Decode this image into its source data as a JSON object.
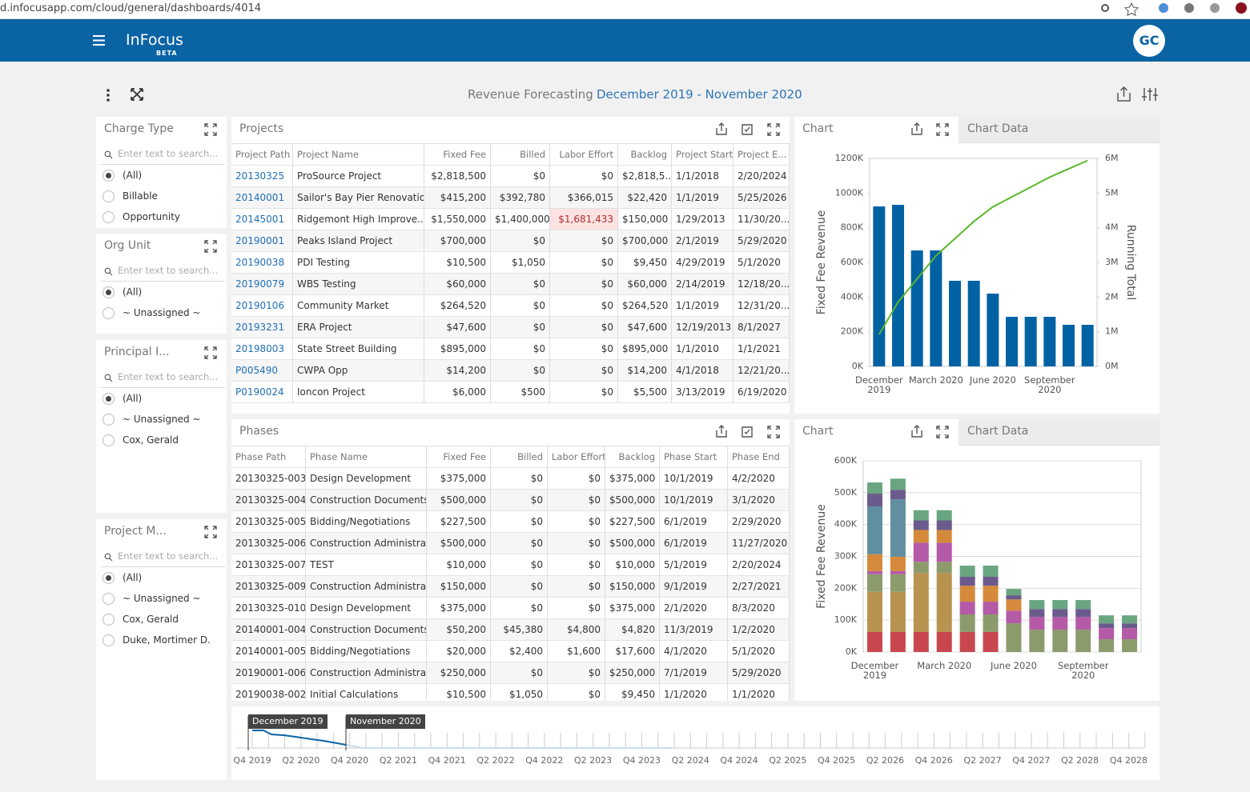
{
  "browser": {
    "url": "d.infocusapp.com/cloud/general/dashboards/4014"
  },
  "header": {
    "app_name": "InFocus",
    "badge": "BETA",
    "avatar": "GC"
  },
  "dashboard": {
    "title": "Revenue Forecasting",
    "date_range": "December 2019 - November 2020"
  },
  "filters": [
    {
      "title": "Charge Type",
      "search_placeholder": "Enter text to search...",
      "options": [
        "(All)",
        "Billable",
        "Opportunity"
      ]
    },
    {
      "title": "Org Unit",
      "search_placeholder": "Enter text to search...",
      "options": [
        "(All)",
        "~ Unassigned ~"
      ]
    },
    {
      "title": "Principal I...",
      "search_placeholder": "Enter text to search...",
      "options": [
        "(All)",
        "~ Unassigned ~",
        "Cox, Gerald"
      ]
    },
    {
      "title": "Project M...",
      "search_placeholder": "Enter text to search...",
      "options": [
        "(All)",
        "~ Unassigned ~",
        "Cox, Gerald",
        "Duke, Mortimer D."
      ]
    }
  ],
  "projects": {
    "title": "Projects",
    "columns": [
      "Project Path",
      "Project Name",
      "Fixed Fee",
      "Billed",
      "Labor Effort",
      "Backlog",
      "Project Start",
      "Project E..."
    ],
    "rows": [
      [
        "20130325",
        "ProSource Project",
        "$2,818,500",
        "$0",
        "$0",
        "$2,818,5...",
        "1/1/2018",
        "2/20/2024"
      ],
      [
        "20140001",
        "Sailor's Bay Pier Renovation",
        "$415,200",
        "$392,780",
        "$366,015",
        "$22,420",
        "1/1/2019",
        "5/25/2026"
      ],
      [
        "20145001",
        "Ridgemont High Improve...",
        "$1,550,000",
        "$1,400,000",
        "$1,681,433",
        "$150,000",
        "1/29/2013",
        "11/30/20..."
      ],
      [
        "20190001",
        "Peaks Island Project",
        "$700,000",
        "$0",
        "$0",
        "$700,000",
        "2/1/2019",
        "5/29/2020"
      ],
      [
        "20190038",
        "PDI Testing",
        "$10,500",
        "$1,050",
        "$0",
        "$9,450",
        "4/29/2019",
        "5/1/2020"
      ],
      [
        "20190079",
        "WBS Testing",
        "$60,000",
        "$0",
        "$0",
        "$60,000",
        "2/14/2019",
        "12/18/20..."
      ],
      [
        "20190106",
        "Community Market",
        "$264,520",
        "$0",
        "$0",
        "$264,520",
        "1/1/2019",
        "12/31/20..."
      ],
      [
        "20193231",
        "ERA Project",
        "$47,600",
        "$0",
        "$0",
        "$47,600",
        "12/19/2013",
        "8/1/2027"
      ],
      [
        "20198003",
        "State Street Building",
        "$895,000",
        "$0",
        "$0",
        "$895,000",
        "1/1/2010",
        "1/1/2021"
      ],
      [
        "P005490",
        "CWPA Opp",
        "$14,200",
        "$0",
        "$0",
        "$14,200",
        "4/1/2018",
        "12/21/20..."
      ],
      [
        "P0190024",
        "Ioncon Project",
        "$6,000",
        "$500",
        "$0",
        "$5,500",
        "3/13/2019",
        "6/19/2020"
      ]
    ]
  },
  "phases": {
    "title": "Phases",
    "columns": [
      "Phase Path",
      "Phase Name",
      "Fixed Fee",
      "Billed",
      "Labor Effort",
      "Backlog",
      "Phase Start",
      "Phase End"
    ],
    "rows": [
      [
        "20130325-003",
        "Design Development",
        "$375,000",
        "$0",
        "$0",
        "$375,000",
        "10/1/2019",
        "4/2/2020"
      ],
      [
        "20130325-004",
        "Construction Documents",
        "$500,000",
        "$0",
        "$0",
        "$500,000",
        "10/1/2019",
        "3/1/2020"
      ],
      [
        "20130325-005",
        "Bidding/Negotiations",
        "$227,500",
        "$0",
        "$0",
        "$227,500",
        "6/1/2019",
        "2/29/2020"
      ],
      [
        "20130325-006",
        "Construction Administra...",
        "$500,000",
        "$0",
        "$0",
        "$500,000",
        "6/1/2019",
        "11/27/2020"
      ],
      [
        "20130325-007",
        "TEST",
        "$10,000",
        "$0",
        "$0",
        "$10,000",
        "5/1/2019",
        "2/20/2024"
      ],
      [
        "20130325-009",
        "Construction Administra...",
        "$150,000",
        "$0",
        "$0",
        "$150,000",
        "9/1/2019",
        "2/27/2021"
      ],
      [
        "20130325-010",
        "Design Development",
        "$375,000",
        "$0",
        "$0",
        "$375,000",
        "2/1/2020",
        "8/3/2020"
      ],
      [
        "20140001-004",
        "Construction Documents",
        "$50,200",
        "$45,380",
        "$4,800",
        "$4,820",
        "11/3/2019",
        "1/2/2020"
      ],
      [
        "20140001-005",
        "Bidding/Negotiations",
        "$20,000",
        "$2,400",
        "$1,600",
        "$17,600",
        "4/1/2020",
        "5/1/2020"
      ],
      [
        "20190001-006",
        "Construction Administra...",
        "$250,000",
        "$0",
        "$0",
        "$250,000",
        "7/1/2019",
        "5/29/2020"
      ],
      [
        "20190038-002",
        "Initial Calculations",
        "$10,500",
        "$1,050",
        "$0",
        "$9,450",
        "1/1/2020",
        "1/1/2020"
      ]
    ]
  },
  "chart_panels": [
    {
      "tabs": [
        "Chart",
        "Chart Data"
      ]
    },
    {
      "tabs": [
        "Chart",
        "Chart Data"
      ]
    }
  ],
  "chart_data": [
    {
      "type": "bar",
      "categories": [
        "December 2019",
        null,
        null,
        "March 2020",
        null,
        null,
        "June 2020",
        null,
        null,
        "September 2020",
        null,
        null
      ],
      "ylabel": "Fixed Fee Revenue",
      "y2label": "Running Total",
      "grid": false,
      "ylim": [
        0,
        1200000
      ],
      "yticks": [
        {
          "value": 0,
          "label": "0K"
        },
        {
          "value": 200000,
          "label": "200K"
        },
        {
          "value": 400000,
          "label": "400K"
        },
        {
          "value": 600000,
          "label": "600K"
        },
        {
          "value": 800000,
          "label": "800K"
        },
        {
          "value": 1000000,
          "label": "1000K"
        },
        {
          "value": 1200000,
          "label": "1200K"
        }
      ],
      "y2lim": [
        0,
        6000000
      ],
      "y2ticks": [
        {
          "value": 0,
          "label": "0M"
        },
        {
          "value": 1000000,
          "label": "1M"
        },
        {
          "value": 2000000,
          "label": "2M"
        },
        {
          "value": 3000000,
          "label": "3M"
        },
        {
          "value": 4000000,
          "label": "4M"
        },
        {
          "value": 5000000,
          "label": "5M"
        },
        {
          "value": 6000000,
          "label": "6M"
        }
      ],
      "series": [
        {
          "type": "bar",
          "color": "#0062a3",
          "values": [
            923000,
            932000,
            669000,
            669000,
            494000,
            494000,
            420000,
            286000,
            286000,
            286000,
            240000,
            240000
          ]
        },
        {
          "type": "line",
          "axis": "y2",
          "color": "#5cb82c",
          "values": [
            923000,
            1855000,
            2524000,
            3193000,
            3687000,
            4181000,
            4601000,
            4887000,
            5173000,
            5459000,
            5699000,
            5939000
          ]
        }
      ]
    },
    {
      "type": "stacked_bar",
      "categories": [
        "December 2019",
        null,
        null,
        "March 2020",
        null,
        null,
        "June 2020",
        null,
        null,
        "September 2020",
        null,
        null
      ],
      "ylabel": "Fixed Fee Revenue",
      "grid": true,
      "ylim": [
        0,
        600000
      ],
      "yticks": [
        {
          "value": 0,
          "label": "0K"
        },
        {
          "value": 100000,
          "label": "100K"
        },
        {
          "value": 200000,
          "label": "200K"
        },
        {
          "value": 300000,
          "label": "300K"
        },
        {
          "value": 400000,
          "label": "400K"
        },
        {
          "value": 500000,
          "label": "500K"
        },
        {
          "value": 600000,
          "label": "600K"
        }
      ],
      "series": [
        {
          "color": "#c8474f",
          "values": [
            63000,
            63000,
            63000,
            63000,
            63000,
            63000,
            0,
            0,
            0,
            0,
            0,
            0
          ]
        },
        {
          "color": "#b8924f",
          "values": [
            126000,
            126000,
            185000,
            185000,
            0,
            0,
            0,
            0,
            0,
            0,
            0,
            0
          ]
        },
        {
          "color": "#8c9b6c",
          "values": [
            55000,
            55000,
            35000,
            35000,
            55000,
            55000,
            90000,
            70000,
            70000,
            70000,
            40000,
            40000
          ]
        },
        {
          "color": "#b45aa6",
          "values": [
            10000,
            10000,
            60000,
            60000,
            40000,
            40000,
            40000,
            40000,
            40000,
            40000,
            35000,
            35000
          ]
        },
        {
          "color": "#d48a3a",
          "values": [
            53000,
            45000,
            40000,
            40000,
            50000,
            50000,
            35000,
            0,
            0,
            0,
            0,
            0
          ]
        },
        {
          "color": "#5f8fa0",
          "values": [
            150000,
            180000,
            0,
            0,
            0,
            0,
            0,
            0,
            0,
            0,
            0,
            0
          ]
        },
        {
          "color": "#6b5b8c",
          "values": [
            40000,
            30000,
            30000,
            30000,
            28000,
            28000,
            13000,
            25000,
            25000,
            25000,
            15000,
            15000
          ]
        },
        {
          "color": "#6aa582",
          "values": [
            35000,
            35000,
            32000,
            32000,
            35000,
            35000,
            20000,
            28000,
            28000,
            28000,
            25000,
            25000
          ]
        }
      ]
    }
  ],
  "timeline": {
    "quarters": [
      "Q4 2019",
      "Q2 2020",
      "Q4 2020",
      "Q2 2021",
      "Q4 2021",
      "Q2 2022",
      "Q4 2022",
      "Q2 2023",
      "Q4 2023",
      "Q2 2024",
      "Q4 2024",
      "Q2 2025",
      "Q4 2025",
      "Q2 2026",
      "Q4 2026",
      "Q2 2027",
      "Q4 2027",
      "Q2 2028",
      "Q4 2028"
    ],
    "start_marker": "December 2019",
    "end_marker": "November 2020"
  }
}
